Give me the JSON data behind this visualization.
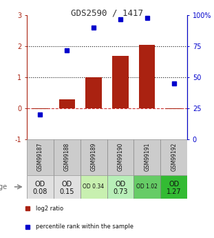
{
  "title": "GDS2590 / 1417",
  "samples": [
    "GSM99187",
    "GSM99188",
    "GSM99189",
    "GSM99190",
    "GSM99191",
    "GSM99192"
  ],
  "log2_ratio": [
    -0.03,
    0.3,
    1.0,
    1.7,
    2.05,
    -0.03
  ],
  "percentile_rank_pct": [
    20,
    72,
    90,
    97,
    98,
    45
  ],
  "od_values_line1": [
    "OD",
    "OD",
    "OD 0.34",
    "OD",
    "OD 1.02",
    "OD"
  ],
  "od_values_line2": [
    "0.08",
    "0.15",
    "",
    "0.73",
    "",
    "1.27"
  ],
  "od_fontsize_large": [
    true,
    true,
    false,
    true,
    false,
    true
  ],
  "cell_colors": [
    "#e0e0e0",
    "#e0e0e0",
    "#c8f0b0",
    "#b8efb8",
    "#66cc66",
    "#33bb33"
  ],
  "bar_color": "#aa2211",
  "dot_color": "#0000cc",
  "ylim_left": [
    -1,
    3
  ],
  "ylim_right": [
    0,
    100
  ],
  "yticks_left": [
    -1,
    0,
    1,
    2,
    3
  ],
  "yticks_right": [
    0,
    25,
    50,
    75,
    100
  ],
  "ytick_labels_left": [
    "-1",
    "0",
    "1",
    "2",
    "3"
  ],
  "ytick_labels_right": [
    "0",
    "25",
    "50",
    "75",
    "100%"
  ],
  "hline_0_style": "--",
  "hline_0_color": "#cc3333",
  "hline_1_style": ":",
  "hline_1_color": "#111111",
  "hline_2_style": ":",
  "hline_2_color": "#111111",
  "sample_bg": "#cccccc",
  "legend_items": [
    {
      "color": "#aa2211",
      "marker": "s",
      "label": "log2 ratio"
    },
    {
      "color": "#0000cc",
      "marker": "s",
      "label": "percentile rank within the sample"
    }
  ]
}
